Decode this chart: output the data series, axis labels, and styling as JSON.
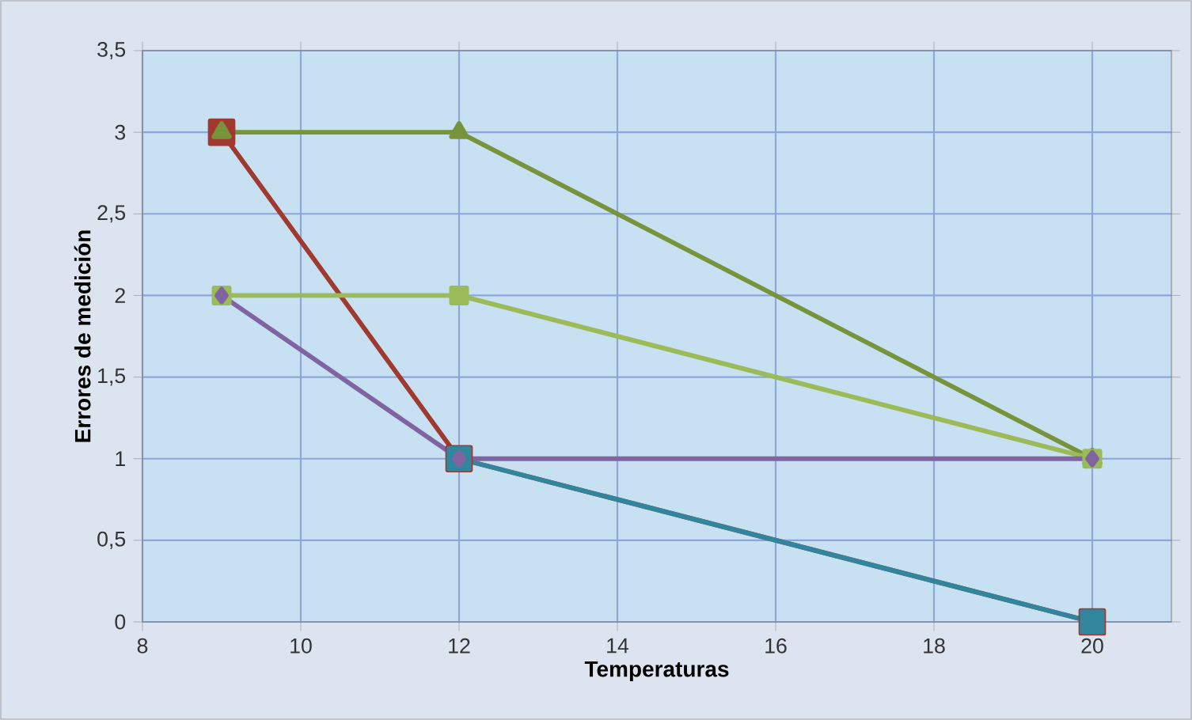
{
  "chart_data": {
    "type": "line",
    "xlabel": "Temperaturas",
    "ylabel": "Errores de medición",
    "xlim": [
      8,
      21
    ],
    "xticks": [
      8,
      10,
      12,
      14,
      16,
      18,
      20
    ],
    "ylim": [
      0,
      3.5
    ],
    "yticks": [
      0,
      {
        "value": 0.5,
        "label": "0,5"
      },
      1,
      {
        "value": 1.5,
        "label": "1,5"
      },
      2,
      {
        "value": 2.5,
        "label": "2,5"
      },
      3,
      {
        "value": 3.5,
        "label": "3,5"
      }
    ],
    "grid": true,
    "x": [
      9,
      12,
      20
    ],
    "series": [
      {
        "color": "#a0392f",
        "marker": "square",
        "values": [
          3,
          1,
          0
        ]
      },
      {
        "color": "#31859c",
        "marker": "square",
        "values": [
          null,
          1,
          0
        ]
      },
      {
        "color": "#77933c",
        "marker": "triangle",
        "values": [
          3,
          3,
          1
        ]
      },
      {
        "color": "#9bbb59",
        "marker": "square",
        "values": [
          2,
          2,
          1
        ]
      },
      {
        "color": "#8064a2",
        "marker": "diamond",
        "values": [
          2,
          1,
          1
        ]
      }
    ]
  }
}
